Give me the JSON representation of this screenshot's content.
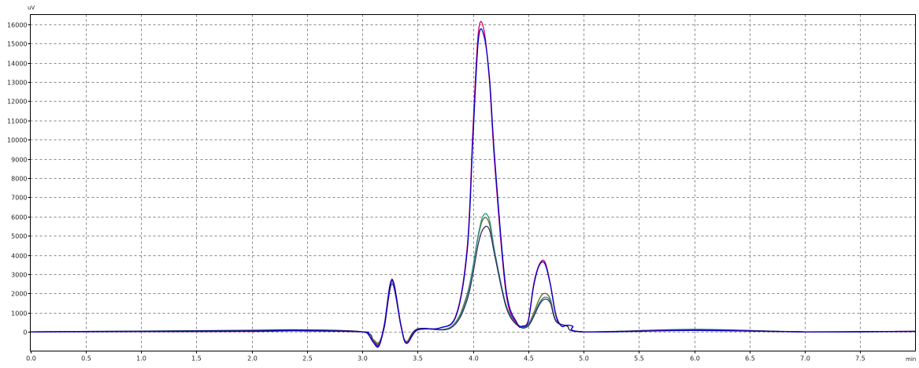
{
  "chart_data": {
    "type": "line",
    "title": "",
    "xlabel": "min",
    "ylabel": "uV",
    "xlim": [
      0.0,
      8.0
    ],
    "ylim": [
      -1000,
      16500
    ],
    "x_ticks": [
      0.0,
      0.5,
      1.0,
      1.5,
      2.0,
      2.5,
      3.0,
      3.5,
      4.0,
      4.5,
      5.0,
      5.5,
      6.0,
      6.5,
      7.0,
      7.5
    ],
    "x_tick_labels": [
      "0.0",
      "0.5",
      "1.0",
      "1.5",
      "2.0",
      "2.5",
      "3.0",
      "3.5",
      "4.0",
      "4.5",
      "5.0",
      "5.5",
      "6.0",
      "6.5",
      "7.0",
      "7.5"
    ],
    "y_ticks": [
      0,
      1000,
      2000,
      3000,
      4000,
      5000,
      6000,
      7000,
      8000,
      9000,
      10000,
      11000,
      12000,
      13000,
      14000,
      15000,
      16000
    ],
    "y_tick_labels": [
      "0",
      "1000",
      "2000",
      "3000",
      "4000",
      "5000",
      "6000",
      "7000",
      "8000",
      "9000",
      "10000",
      "11000",
      "12000",
      "13000",
      "14000",
      "15000",
      "16000"
    ],
    "grid": true,
    "x_unit_label": "min",
    "y_unit_label": "uV",
    "series": [
      {
        "color": "#d4006a",
        "x": [
          0.0,
          1.9,
          2.4,
          3.0,
          3.05,
          3.1,
          3.15,
          3.2,
          3.27,
          3.35,
          3.4,
          3.5,
          3.7,
          3.85,
          3.95,
          4.0,
          4.05,
          4.1,
          4.15,
          4.2,
          4.3,
          4.4,
          4.45,
          4.5,
          4.55,
          4.6,
          4.65,
          4.7,
          4.75,
          4.8,
          4.85,
          4.9,
          5.0,
          6.0,
          7.0,
          8.0
        ],
        "y": [
          0,
          20,
          50,
          0,
          -100,
          -500,
          -700,
          400,
          2750,
          300,
          -550,
          100,
          200,
          900,
          4500,
          10500,
          15600,
          15700,
          13000,
          8500,
          2000,
          400,
          300,
          600,
          2500,
          3500,
          3650,
          2500,
          900,
          300,
          350,
          300,
          0,
          80,
          0,
          30
        ]
      },
      {
        "color": "#0000cc",
        "x": [
          0.0,
          1.9,
          2.4,
          3.0,
          3.05,
          3.1,
          3.15,
          3.2,
          3.27,
          3.35,
          3.4,
          3.5,
          3.7,
          3.85,
          3.95,
          4.0,
          4.05,
          4.1,
          4.15,
          4.2,
          4.3,
          4.4,
          4.45,
          4.5,
          4.55,
          4.6,
          4.65,
          4.7,
          4.75,
          4.8,
          4.85,
          4.9,
          5.0,
          6.0,
          7.0,
          8.0
        ],
        "y": [
          0,
          30,
          60,
          0,
          -100,
          -550,
          -750,
          350,
          2700,
          350,
          -600,
          100,
          200,
          850,
          4300,
          10000,
          15200,
          15400,
          13200,
          8800,
          2200,
          450,
          300,
          550,
          2400,
          3450,
          3550,
          2450,
          850,
          300,
          350,
          300,
          0,
          70,
          0,
          20
        ]
      },
      {
        "color": "#6d6d2a",
        "x": [
          0.0,
          1.9,
          2.4,
          3.0,
          3.1,
          3.15,
          3.2,
          3.27,
          3.35,
          3.4,
          3.5,
          3.8,
          3.95,
          4.05,
          4.1,
          4.15,
          4.2,
          4.3,
          4.4,
          4.5,
          4.6,
          4.65,
          4.7,
          4.75,
          4.85,
          5.0,
          6.0,
          7.0,
          8.0
        ],
        "y": [
          0,
          60,
          90,
          0,
          -400,
          -550,
          300,
          2650,
          300,
          -500,
          150,
          250,
          2000,
          5000,
          5900,
          5600,
          4000,
          1400,
          400,
          400,
          1700,
          2000,
          1700,
          600,
          300,
          0,
          120,
          0,
          30
        ]
      },
      {
        "color": "#2f8f8f",
        "x": [
          0.0,
          1.9,
          2.4,
          3.0,
          3.1,
          3.15,
          3.2,
          3.27,
          3.35,
          3.4,
          3.5,
          3.8,
          3.95,
          4.05,
          4.1,
          4.15,
          4.2,
          4.3,
          4.4,
          4.5,
          4.6,
          4.65,
          4.7,
          4.75,
          4.85,
          5.0,
          6.0,
          7.0,
          8.0
        ],
        "y": [
          0,
          80,
          110,
          0,
          -450,
          -600,
          300,
          2600,
          300,
          -550,
          150,
          250,
          1900,
          5100,
          6100,
          5800,
          4100,
          1400,
          400,
          350,
          1500,
          1800,
          1600,
          600,
          300,
          0,
          130,
          0,
          30
        ]
      },
      {
        "color": "#303060",
        "x": [
          0.0,
          1.9,
          2.4,
          3.0,
          3.1,
          3.15,
          3.2,
          3.27,
          3.35,
          3.4,
          3.5,
          3.8,
          3.95,
          4.05,
          4.1,
          4.15,
          4.2,
          4.3,
          4.4,
          4.5,
          4.6,
          4.65,
          4.7,
          4.75,
          4.85,
          5.0,
          6.0,
          7.0,
          8.0
        ],
        "y": [
          0,
          70,
          100,
          0,
          -500,
          -650,
          250,
          2500,
          300,
          -600,
          150,
          200,
          1700,
          4600,
          5400,
          5300,
          3900,
          1300,
          350,
          300,
          1400,
          1700,
          1500,
          550,
          300,
          0,
          110,
          0,
          25
        ]
      }
    ]
  }
}
